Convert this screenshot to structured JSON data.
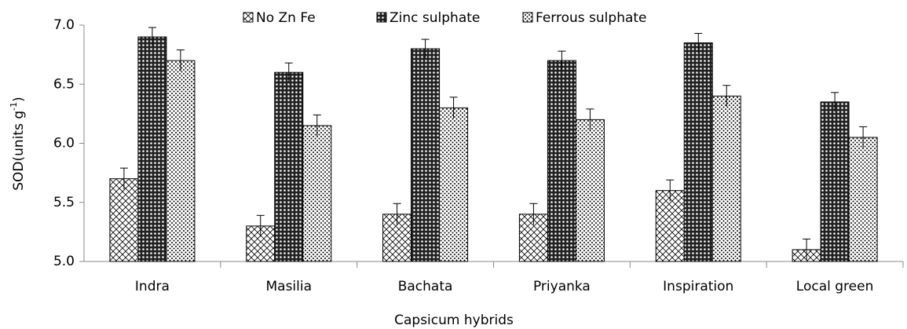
{
  "chart_data": {
    "type": "bar",
    "y_label": {
      "text": "SOD(units g",
      "sup": "-1",
      "end": ")"
    },
    "x_label": "Capsicum hybrids",
    "categories": [
      "Indra",
      "Masilia",
      "Bachata",
      "Priyanka",
      "Inspiration",
      "Local green"
    ],
    "series": [
      {
        "name": "No Zn Fe",
        "color": "#000000",
        "pattern": "crosshatch",
        "values": [
          5.7,
          5.3,
          5.4,
          5.4,
          5.6,
          5.1
        ],
        "errors": [
          0.09,
          0.09,
          0.09,
          0.09,
          0.09,
          0.09
        ]
      },
      {
        "name": "Zinc sulphate",
        "color": "#000000",
        "pattern": "checker",
        "values": [
          6.9,
          6.6,
          6.8,
          6.7,
          6.85,
          6.35
        ],
        "errors": [
          0.08,
          0.08,
          0.08,
          0.08,
          0.08,
          0.08
        ]
      },
      {
        "name": "Ferrous sulphate",
        "color": "#000000",
        "pattern": "dots",
        "values": [
          6.7,
          6.15,
          6.3,
          6.2,
          6.4,
          6.05
        ],
        "errors": [
          0.09,
          0.09,
          0.09,
          0.09,
          0.09,
          0.09
        ]
      }
    ],
    "ylim": [
      5,
      7
    ],
    "yticks": [
      {
        "value": 5,
        "label": "5.0"
      },
      {
        "value": 5.5,
        "label": "5.5"
      },
      {
        "value": 6,
        "label": "6.0"
      },
      {
        "value": 6.5,
        "label": "6.5"
      },
      {
        "value": 7,
        "label": "7.0"
      }
    ],
    "legend": "top",
    "grid": false
  }
}
